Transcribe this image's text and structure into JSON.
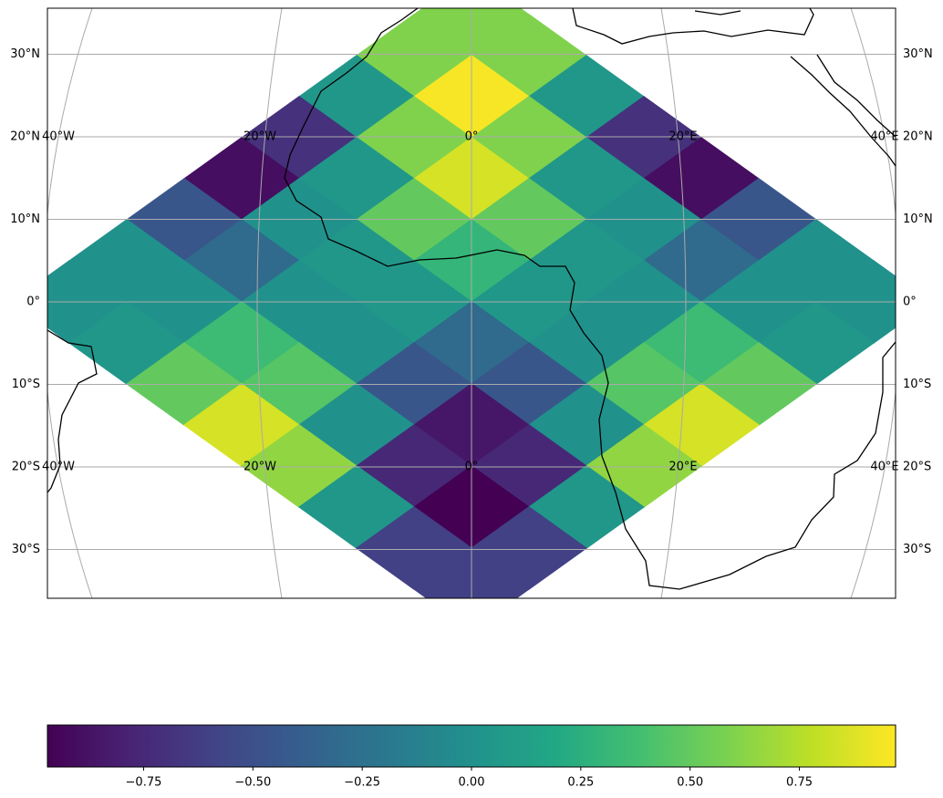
{
  "map": {
    "colormap": "viridis",
    "clim": [
      -0.97,
      0.97
    ],
    "cells": [
      [
        null,
        null,
        null,
        null,
        null,
        null,
        null,
        0.6,
        null,
        null,
        null,
        null,
        null,
        null,
        null
      ],
      [
        null,
        null,
        null,
        null,
        null,
        null,
        0.6,
        null,
        0.6,
        null,
        null,
        null,
        null,
        null,
        null
      ],
      [
        null,
        null,
        null,
        null,
        null,
        0.05,
        null,
        0.95,
        null,
        0.05,
        null,
        null,
        null,
        null,
        null
      ],
      [
        null,
        null,
        null,
        null,
        -0.7,
        null,
        0.6,
        null,
        0.6,
        null,
        -0.7,
        null,
        null,
        null,
        null
      ],
      [
        null,
        null,
        null,
        -0.9,
        null,
        0.05,
        null,
        0.85,
        null,
        0.05,
        null,
        -0.9,
        null,
        null,
        null
      ],
      [
        null,
        null,
        -0.45,
        null,
        0.0,
        null,
        0.5,
        null,
        0.5,
        null,
        0.0,
        null,
        -0.45,
        null,
        null
      ],
      [
        null,
        0.0,
        null,
        -0.3,
        null,
        0.05,
        null,
        0.3,
        null,
        0.05,
        null,
        -0.3,
        null,
        0.0,
        null
      ],
      [
        0.0,
        null,
        0.0,
        null,
        0.0,
        null,
        0.05,
        null,
        0.05,
        null,
        0.0,
        null,
        0.0,
        null,
        0.0
      ],
      [
        null,
        0.05,
        null,
        0.35,
        null,
        0.0,
        null,
        -0.3,
        null,
        0.0,
        null,
        0.35,
        null,
        0.05,
        null
      ],
      [
        null,
        null,
        0.5,
        null,
        0.45,
        null,
        -0.45,
        null,
        -0.45,
        null,
        0.45,
        null,
        0.5,
        null,
        null
      ],
      [
        null,
        null,
        null,
        0.85,
        null,
        0.0,
        null,
        -0.85,
        null,
        0.0,
        null,
        0.85,
        null,
        null,
        null
      ],
      [
        null,
        null,
        null,
        null,
        0.65,
        null,
        -0.75,
        null,
        -0.75,
        null,
        0.65,
        null,
        null,
        null,
        null
      ],
      [
        null,
        null,
        null,
        null,
        null,
        0.05,
        null,
        -0.97,
        null,
        0.05,
        null,
        null,
        null,
        null,
        null
      ],
      [
        null,
        null,
        null,
        null,
        null,
        null,
        -0.6,
        null,
        -0.6,
        null,
        null,
        null,
        null,
        null,
        null
      ],
      [
        null,
        null,
        null,
        null,
        null,
        null,
        null,
        -0.6,
        null,
        null,
        null,
        null,
        null,
        null,
        null
      ]
    ],
    "lat_ticks": [
      {
        "value": 30,
        "label": "30°N"
      },
      {
        "value": 20,
        "label": "20°N"
      },
      {
        "value": 10,
        "label": "10°N"
      },
      {
        "value": 0,
        "label": "0°"
      },
      {
        "value": -10,
        "label": "10°S"
      },
      {
        "value": -20,
        "label": "20°S"
      },
      {
        "value": -30,
        "label": "30°S"
      }
    ],
    "lon_ticks": [
      {
        "value": -40,
        "label": "40°W"
      },
      {
        "value": -20,
        "label": "20°W"
      },
      {
        "value": 0,
        "label": "0°"
      },
      {
        "value": 20,
        "label": "20°E"
      },
      {
        "value": 40,
        "label": "40°E"
      }
    ],
    "colorbar_ticks": [
      {
        "value": -0.75,
        "label": "−0.75"
      },
      {
        "value": -0.5,
        "label": "−0.50"
      },
      {
        "value": -0.25,
        "label": "−0.25"
      },
      {
        "value": 0,
        "label": "0.00"
      },
      {
        "value": 0.25,
        "label": "0.25"
      },
      {
        "value": 0.5,
        "label": "0.50"
      },
      {
        "value": 0.75,
        "label": "0.75"
      }
    ]
  }
}
